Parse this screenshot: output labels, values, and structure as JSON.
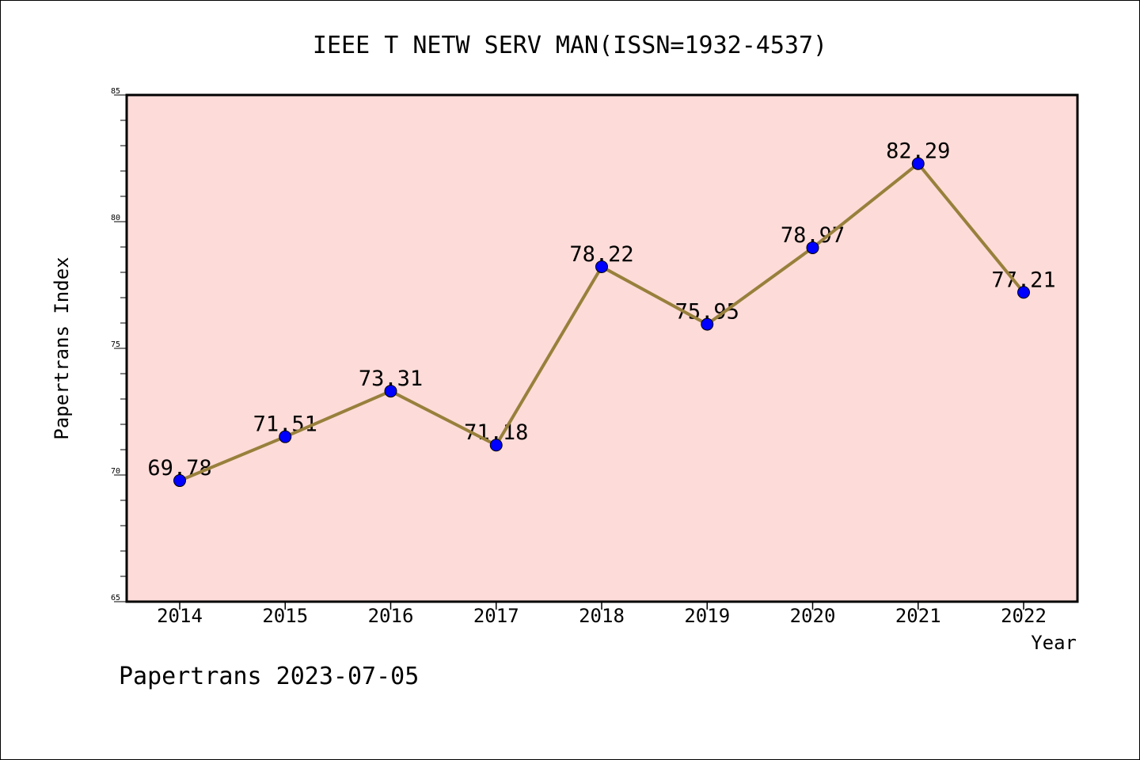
{
  "chart_data": {
    "type": "line",
    "title": "IEEE T NETW SERV MAN(ISSN=1932-4537)",
    "xlabel": "Year",
    "ylabel": "Papertrans Index",
    "categories": [
      "2014",
      "2015",
      "2016",
      "2017",
      "2018",
      "2019",
      "2020",
      "2021",
      "2022"
    ],
    "series": [
      {
        "values": [
          69.78,
          71.51,
          73.31,
          71.18,
          78.22,
          75.95,
          78.97,
          82.29,
          77.21
        ]
      }
    ],
    "data_labels": [
      "69.78",
      "71.51",
      "73.31",
      "71.18",
      "78.22",
      "75.95",
      "78.97",
      "82.29",
      "77.21"
    ],
    "ylim": [
      65,
      85
    ],
    "yticks": [
      "65",
      "70",
      "75",
      "80",
      "85"
    ],
    "grid": false,
    "legend": "none",
    "colors": {
      "plot_background": "#fddbd8",
      "line": "#98803c",
      "marker": "#0000ff"
    }
  },
  "footer": {
    "credit": "Papertrans 2023-07-05"
  }
}
